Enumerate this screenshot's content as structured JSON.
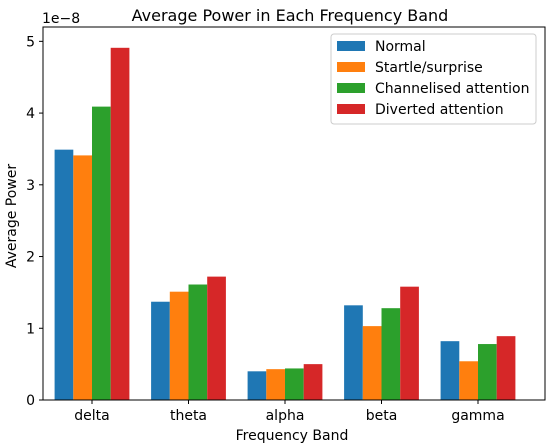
{
  "chart_data": {
    "type": "bar",
    "title": "Average Power in Each Frequency Band",
    "xlabel": "Frequency Band",
    "ylabel": "Average Power",
    "y_offset_label": "1e−8",
    "y_tick_labels": [
      "0",
      "1",
      "2",
      "3",
      "4",
      "5"
    ],
    "y_ticks": [
      0,
      1,
      2,
      3,
      4,
      5
    ],
    "ylim": [
      0,
      5.2
    ],
    "grid": false,
    "legend_position": "top-right",
    "categories": [
      "delta",
      "theta",
      "alpha",
      "beta",
      "gamma"
    ],
    "series": [
      {
        "name": "Normal",
        "color": "#1f77b4",
        "values": [
          3.49,
          1.37,
          0.4,
          1.32,
          0.82
        ]
      },
      {
        "name": "Startle/surprise",
        "color": "#ff7f0e",
        "values": [
          3.41,
          1.51,
          0.43,
          1.03,
          0.54
        ]
      },
      {
        "name": "Channelised attention",
        "color": "#2ca02c",
        "values": [
          4.09,
          1.61,
          0.44,
          1.28,
          0.78
        ]
      },
      {
        "name": "Diverted attention",
        "color": "#d62728",
        "values": [
          4.91,
          1.72,
          0.5,
          1.58,
          0.89
        ]
      }
    ]
  }
}
